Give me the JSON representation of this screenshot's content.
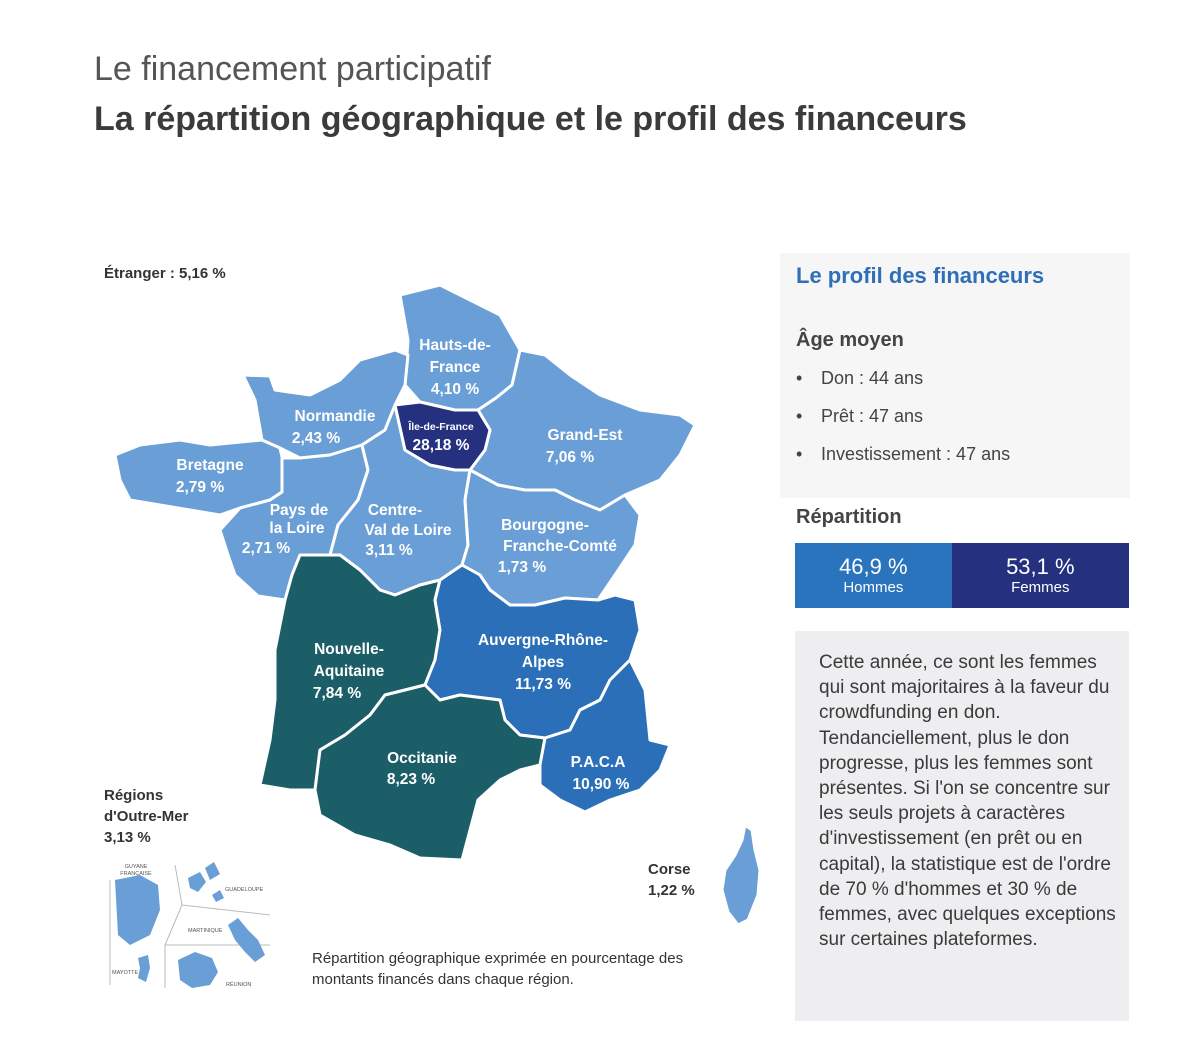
{
  "header": {
    "title": "Le financement participatif",
    "subtitle": "La répartition géographique et le profil des financeurs"
  },
  "colors": {
    "light_blue": "#6a9ed6",
    "mid_blue": "#2b6fb8",
    "dark_navy": "#25307e",
    "teal": "#1b5e68",
    "bar_men": "#2a74bd",
    "bar_women": "#25307e",
    "panel_title": "#2f6fb7"
  },
  "map": {
    "etranger": "Étranger  : 5,16 %",
    "regions": [
      {
        "name_lines": [
          "Hauts-de-",
          "France"
        ],
        "value": "4,10 %"
      },
      {
        "name_lines": [
          "Normandie"
        ],
        "value": "2,43 %"
      },
      {
        "name_lines": [
          "Île-de-France"
        ],
        "value": "28,18 %"
      },
      {
        "name_lines": [
          "Grand-Est"
        ],
        "value": "7,06 %"
      },
      {
        "name_lines": [
          "Bretagne"
        ],
        "value": "2,79 %"
      },
      {
        "name_lines": [
          "Pays de",
          "la Loire"
        ],
        "value": "2,71 %"
      },
      {
        "name_lines": [
          "Centre-",
          "Val de Loire"
        ],
        "value": "3,11 %"
      },
      {
        "name_lines": [
          "Bourgogne-",
          "Franche-Comté"
        ],
        "value": "1,73 %"
      },
      {
        "name_lines": [
          "Nouvelle-",
          "Aquitaine"
        ],
        "value": "7,84 %"
      },
      {
        "name_lines": [
          "Auvergne-Rhône-",
          "Alpes"
        ],
        "value": "11,73 %"
      },
      {
        "name_lines": [
          "Occitanie"
        ],
        "value": "8,23 %"
      },
      {
        "name_lines": [
          "P.A.C.A"
        ],
        "value": "10,90 %"
      },
      {
        "name_lines": [
          "Corse"
        ],
        "value": "1,22 %"
      },
      {
        "name_lines": [
          "Régions",
          "d'Outre-Mer"
        ],
        "value": "3,13 %"
      }
    ],
    "overseas": {
      "guyane": [
        "GUYANE",
        "FRANÇAISE"
      ],
      "guadeloupe": "GUADELOUPE",
      "martinique": "MARTINIQUE",
      "mayotte": "MAYOTTE",
      "reunion": "RÉUNION"
    },
    "note": "Répartition géographique exprimée en pourcentage des montants financés dans chaque région."
  },
  "profile": {
    "title": "Le profil des financeurs",
    "age_title": "Âge moyen",
    "age_items": [
      "Don : 44 ans",
      "Prêt : 47 ans",
      "Investissement : 47 ans"
    ],
    "bullet": "•",
    "repartition_title": "Répartition",
    "men": {
      "percent": "46,9 %",
      "label": "Hommes",
      "value": 46.9
    },
    "women": {
      "percent": "53,1 %",
      "label": "Femmes",
      "value": 53.1
    },
    "text": "Cette année, ce sont les femmes qui sont majoritaires à la faveur du crowdfunding en don. Tendanciellement, plus le don progresse, plus les femmes sont présentes. Si l'on se concentre sur les seuls projets à caractères d'investissement (en prêt ou en capital), la statistique est de l'ordre de 70 % d'hommes et 30 %  de femmes, avec quelques exceptions sur certaines plateformes."
  }
}
